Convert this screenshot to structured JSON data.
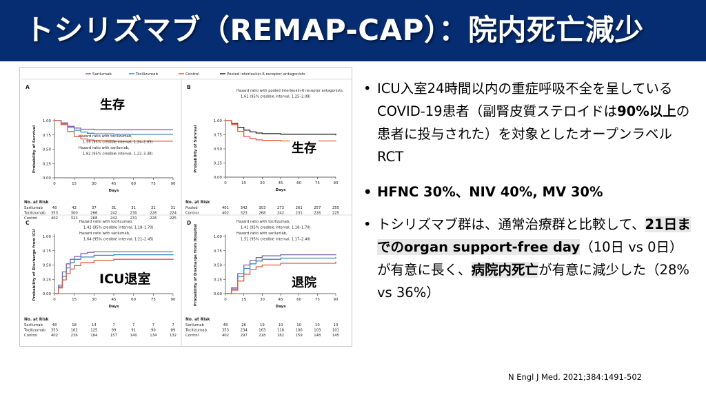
{
  "header": {
    "title": "トシリズマブ（REMAP-CAP）：院内死亡減少"
  },
  "figure": {
    "legend": [
      "Sarilumab",
      "Tocilizumab",
      "Control",
      "Pooled interleukin-6 receptor antagonists"
    ],
    "overlay_labels": {
      "A": "生存",
      "B": "生存",
      "C": "ICU退室",
      "D": "退院"
    },
    "at_risk_title": "No. at Risk",
    "days_label": "Days"
  },
  "colors": {
    "sarilumab": "#8060a8",
    "tocilizumab": "#3a86c6",
    "control": "#e05b3a",
    "pooled": "#222222",
    "header_bg": "#062d71"
  },
  "chart_data": [
    {
      "panel": "A",
      "type": "line",
      "xlabel": "Days",
      "ylabel": "Probability of Survival",
      "xlim": [
        0,
        90
      ],
      "ylim": [
        0,
        1.0
      ],
      "x_ticks": [
        "0",
        "15",
        "30",
        "45",
        "60",
        "75",
        "90"
      ],
      "y_ticks": [
        "0.00",
        "0.25",
        "0.50",
        "0.75",
        "1.00"
      ],
      "annotation": [
        "Hazard ratio with tocilizumab,",
        "1.59 (95% credible interval, 1.24–2.05)",
        "Hazard ratio with sarilumab,",
        "1.82 (95% credible interval, 1.22–3.38)"
      ],
      "series": [
        {
          "name": "Sarilumab",
          "key": "sarilumab",
          "points": [
            [
              0,
              1.0
            ],
            [
              5,
              0.96
            ],
            [
              10,
              0.9
            ],
            [
              15,
              0.87
            ],
            [
              20,
              0.85
            ],
            [
              30,
              0.84
            ],
            [
              90,
              0.84
            ]
          ]
        },
        {
          "name": "Tocilizumab",
          "key": "tocilizumab",
          "points": [
            [
              0,
              1.0
            ],
            [
              5,
              0.95
            ],
            [
              10,
              0.88
            ],
            [
              15,
              0.83
            ],
            [
              20,
              0.8
            ],
            [
              25,
              0.78
            ],
            [
              30,
              0.77
            ],
            [
              45,
              0.76
            ],
            [
              90,
              0.76
            ]
          ]
        },
        {
          "name": "Control",
          "key": "control",
          "points": [
            [
              0,
              1.0
            ],
            [
              5,
              0.93
            ],
            [
              10,
              0.81
            ],
            [
              15,
              0.72
            ],
            [
              20,
              0.68
            ],
            [
              25,
              0.66
            ],
            [
              30,
              0.65
            ],
            [
              45,
              0.64
            ],
            [
              90,
              0.64
            ]
          ]
        }
      ],
      "at_risk": {
        "rows": [
          {
            "name": "Sarilumab",
            "values": [
              "48",
              "42",
              "37",
              "31",
              "31",
              "31",
              "31"
            ]
          },
          {
            "name": "Tocilizumab",
            "values": [
              "353",
              "300",
              "266",
              "242",
              "230",
              "226",
              "224"
            ]
          },
          {
            "name": "Control",
            "values": [
              "402",
              "323",
              "268",
              "242",
              "231",
              "226",
              "225"
            ]
          }
        ]
      }
    },
    {
      "panel": "B",
      "type": "line",
      "xlabel": "Days",
      "ylabel": "Probability of Survival",
      "xlim": [
        0,
        90
      ],
      "ylim": [
        0,
        1.0
      ],
      "x_ticks": [
        "0",
        "15",
        "30",
        "45",
        "60",
        "75",
        "90"
      ],
      "y_ticks": [
        "0.00",
        "0.25",
        "0.50",
        "0.75",
        "1.00"
      ],
      "annotation": [
        "Hazard ratio with pooled interleukin-6 receptor antagonists,",
        "1.61 (95% credible interval, 1.25–2.08)"
      ],
      "series": [
        {
          "name": "Pooled",
          "key": "pooled",
          "points": [
            [
              0,
              1.0
            ],
            [
              5,
              0.95
            ],
            [
              10,
              0.88
            ],
            [
              15,
              0.83
            ],
            [
              20,
              0.8
            ],
            [
              25,
              0.78
            ],
            [
              30,
              0.77
            ],
            [
              45,
              0.76
            ],
            [
              90,
              0.74
            ]
          ]
        },
        {
          "name": "Control",
          "key": "control",
          "points": [
            [
              0,
              1.0
            ],
            [
              5,
              0.93
            ],
            [
              10,
              0.81
            ],
            [
              15,
              0.72
            ],
            [
              20,
              0.68
            ],
            [
              25,
              0.66
            ],
            [
              30,
              0.65
            ],
            [
              45,
              0.64
            ],
            [
              90,
              0.63
            ]
          ]
        }
      ],
      "at_risk": {
        "rows": [
          {
            "name": "Pooled",
            "values": [
              "401",
              "342",
              "303",
              "273",
              "261",
              "257",
              "255"
            ]
          },
          {
            "name": "Control",
            "values": [
              "402",
              "323",
              "268",
              "242",
              "231",
              "226",
              "225"
            ]
          }
        ]
      }
    },
    {
      "panel": "C",
      "type": "line",
      "xlabel": "Days",
      "ylabel": "Probability of Discharge from ICU",
      "xlim": [
        0,
        90
      ],
      "ylim": [
        0,
        1.0
      ],
      "x_ticks": [
        "0",
        "15",
        "30",
        "45",
        "60",
        "75",
        "90"
      ],
      "y_ticks": [
        "0.00",
        "0.25",
        "0.50",
        "0.75",
        "1.00"
      ],
      "annotation": [
        "Hazard ratio with tocilizumab,",
        "1.42 (95% credible interval, 1.18–1.70)",
        "Hazard ratio with sarilumab,",
        "1.64 (95% credible interval, 1.21–2.45)"
      ],
      "series": [
        {
          "name": "Sarilumab",
          "key": "sarilumab",
          "points": [
            [
              0,
              0
            ],
            [
              3,
              0.15
            ],
            [
              6,
              0.38
            ],
            [
              9,
              0.52
            ],
            [
              12,
              0.6
            ],
            [
              15,
              0.65
            ],
            [
              20,
              0.7
            ],
            [
              25,
              0.72
            ],
            [
              30,
              0.73
            ],
            [
              90,
              0.73
            ]
          ]
        },
        {
          "name": "Tocilizumab",
          "key": "tocilizumab",
          "points": [
            [
              0,
              0
            ],
            [
              3,
              0.12
            ],
            [
              6,
              0.3
            ],
            [
              9,
              0.45
            ],
            [
              12,
              0.54
            ],
            [
              15,
              0.6
            ],
            [
              20,
              0.64
            ],
            [
              30,
              0.67
            ],
            [
              45,
              0.68
            ],
            [
              90,
              0.69
            ]
          ]
        },
        {
          "name": "Control",
          "key": "control",
          "points": [
            [
              0,
              0
            ],
            [
              3,
              0.1
            ],
            [
              6,
              0.24
            ],
            [
              9,
              0.35
            ],
            [
              12,
              0.43
            ],
            [
              15,
              0.49
            ],
            [
              20,
              0.54
            ],
            [
              30,
              0.58
            ],
            [
              45,
              0.6
            ],
            [
              90,
              0.61
            ]
          ]
        }
      ],
      "at_risk": {
        "rows": [
          {
            "name": "Sarilumab",
            "values": [
              "48",
              "18",
              "14",
              "7",
              "7",
              "7",
              "7"
            ]
          },
          {
            "name": "Tocilizumab",
            "values": [
              "353",
              "162",
              "125",
              "99",
              "91",
              "90",
              "89"
            ]
          },
          {
            "name": "Control",
            "values": [
              "402",
              "236",
              "184",
              "157",
              "140",
              "134",
              "132"
            ]
          }
        ]
      }
    },
    {
      "panel": "D",
      "type": "line",
      "xlabel": "Days",
      "ylabel": "Probability of Discharge from Hospital",
      "xlim": [
        0,
        90
      ],
      "ylim": [
        0,
        1.0
      ],
      "x_ticks": [
        "0",
        "15",
        "30",
        "45",
        "60",
        "75",
        "90"
      ],
      "y_ticks": [
        "0.00",
        "0.25",
        "0.50",
        "0.75",
        "1.00"
      ],
      "annotation": [
        "Hazard ratio with tocilizumab,",
        "1.41 (95% credible interval, 1.18–1.70)",
        "Hazard ratio with sarilumab,",
        "1.51 (95% credible interval, 1.17–2.40)"
      ],
      "series": [
        {
          "name": "Sarilumab",
          "key": "sarilumab",
          "points": [
            [
              0,
              0
            ],
            [
              5,
              0.1
            ],
            [
              10,
              0.35
            ],
            [
              15,
              0.5
            ],
            [
              20,
              0.58
            ],
            [
              25,
              0.63
            ],
            [
              30,
              0.66
            ],
            [
              45,
              0.68
            ],
            [
              90,
              0.69
            ]
          ]
        },
        {
          "name": "Tocilizumab",
          "key": "tocilizumab",
          "points": [
            [
              0,
              0
            ],
            [
              5,
              0.08
            ],
            [
              10,
              0.3
            ],
            [
              15,
              0.44
            ],
            [
              20,
              0.52
            ],
            [
              25,
              0.57
            ],
            [
              30,
              0.6
            ],
            [
              45,
              0.62
            ],
            [
              90,
              0.64
            ]
          ]
        },
        {
          "name": "Control",
          "key": "control",
          "points": [
            [
              0,
              0
            ],
            [
              5,
              0.06
            ],
            [
              10,
              0.22
            ],
            [
              15,
              0.34
            ],
            [
              20,
              0.42
            ],
            [
              25,
              0.47
            ],
            [
              30,
              0.5
            ],
            [
              45,
              0.53
            ],
            [
              90,
              0.56
            ]
          ]
        }
      ],
      "at_risk": {
        "rows": [
          {
            "name": "Sarilumab",
            "values": [
              "48",
              "26",
              "19",
              "10",
              "10",
              "10",
              "10"
            ]
          },
          {
            "name": "Tocilizumab",
            "values": [
              "353",
              "234",
              "163",
              "118",
              "106",
              "103",
              "101"
            ]
          },
          {
            "name": "Control",
            "values": [
              "402",
              "297",
              "218",
              "182",
              "159",
              "148",
              "145"
            ]
          }
        ]
      }
    }
  ],
  "bullets": {
    "b1": {
      "p1": "ICU入室24時間以内の重症呼吸不全を呈しているCOVID-19患者（副腎皮質ステロイドは",
      "bold": "90%以上",
      "p2": "の患者に投与された）を対象としたオープンラベルRCT"
    },
    "b2": {
      "text": "HFNC 30%、NIV 40%, MV 30%"
    },
    "b3": {
      "p1": "トシリズマブ群は、通常治療群と比較して、",
      "hl1": "21日までのorgan support-free day",
      "p2": "（10日 vs 0日）が有意に長く、",
      "hl2": "病院内死亡",
      "p3": "が有意に減少した（28% vs 36%）"
    }
  },
  "citation": "N Engl J Med. 2021;384:1491-502"
}
